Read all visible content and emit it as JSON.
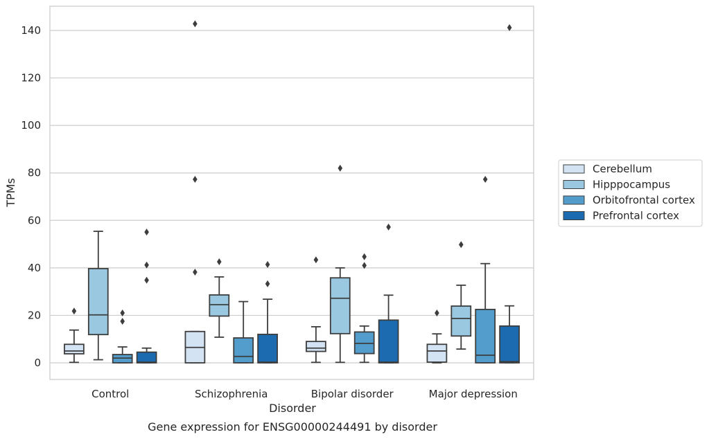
{
  "chart_data": {
    "type": "box",
    "title": "Gene expression for ENSG00000244491 by disorder",
    "xlabel": "Disorder",
    "ylabel": "TPMs",
    "ylim": [
      -7,
      150
    ],
    "yticks": [
      0,
      20,
      40,
      60,
      80,
      100,
      120,
      140
    ],
    "grid": true,
    "legend_position": "right",
    "categories": [
      "Control",
      "Schizophrenia",
      "Bipolar disorder",
      "Major depression"
    ],
    "series": [
      {
        "name": "Cerebellum",
        "color": "#d3e3f3",
        "boxes": [
          {
            "whislo": 0.2,
            "q1": 3.8,
            "med": 5.0,
            "q3": 7.8,
            "whishi": 13.8,
            "fliers": [
              21.8
            ]
          },
          {
            "whislo": 0.0,
            "q1": 0.0,
            "med": 6.5,
            "q3": 13.2,
            "whishi": 13.2,
            "fliers": [
              38.2,
              77.3,
              142.8
            ]
          },
          {
            "whislo": 0.2,
            "q1": 4.8,
            "med": 6.2,
            "q3": 9.0,
            "whishi": 15.2,
            "fliers": [
              43.4
            ]
          },
          {
            "whislo": 0.0,
            "q1": 0.3,
            "med": 5.0,
            "q3": 7.8,
            "whishi": 12.2,
            "fliers": [
              21.0
            ]
          }
        ]
      },
      {
        "name": "Hipppocampus",
        "color": "#9ac8e0",
        "boxes": [
          {
            "whislo": 1.3,
            "q1": 11.9,
            "med": 20.2,
            "q3": 39.7,
            "whishi": 55.4,
            "fliers": []
          },
          {
            "whislo": 10.8,
            "q1": 19.7,
            "med": 24.5,
            "q3": 28.6,
            "whishi": 36.2,
            "fliers": [
              42.6
            ]
          },
          {
            "whislo": 0.2,
            "q1": 12.3,
            "med": 27.2,
            "q3": 35.8,
            "whishi": 40.0,
            "fliers": [
              82.0
            ]
          },
          {
            "whislo": 5.8,
            "q1": 11.3,
            "med": 18.7,
            "q3": 23.9,
            "whishi": 32.7,
            "fliers": [
              49.8
            ]
          }
        ]
      },
      {
        "name": "Orbitofrontal cortex",
        "color": "#529dcc",
        "boxes": [
          {
            "whislo": 0.0,
            "q1": 0.0,
            "med": 2.0,
            "q3": 3.5,
            "whishi": 6.7,
            "fliers": [
              17.5,
              21.0
            ]
          },
          {
            "whislo": 0.0,
            "q1": 0.0,
            "med": 2.7,
            "q3": 10.5,
            "whishi": 25.8,
            "fliers": []
          },
          {
            "whislo": 0.2,
            "q1": 3.9,
            "med": 8.2,
            "q3": 13.0,
            "whishi": 15.5,
            "fliers": [
              41.0,
              44.7
            ]
          },
          {
            "whislo": 0.0,
            "q1": 0.0,
            "med": 3.2,
            "q3": 22.5,
            "whishi": 41.8,
            "fliers": [
              77.3
            ]
          }
        ]
      },
      {
        "name": "Prefrontal cortex",
        "color": "#1c6aaf",
        "boxes": [
          {
            "whislo": 0.0,
            "q1": 0.0,
            "med": 0.3,
            "q3": 4.5,
            "whishi": 6.2,
            "fliers": [
              34.8,
              41.2,
              55.1
            ]
          },
          {
            "whislo": 0.0,
            "q1": 0.0,
            "med": 0.3,
            "q3": 12.0,
            "whishi": 26.8,
            "fliers": [
              33.3,
              41.4
            ]
          },
          {
            "whislo": 0.0,
            "q1": 0.0,
            "med": 0.3,
            "q3": 18.0,
            "whishi": 28.5,
            "fliers": [
              57.2
            ]
          },
          {
            "whislo": 0.0,
            "q1": 0.0,
            "med": 0.5,
            "q3": 15.5,
            "whishi": 24.0,
            "fliers": [
              141.2
            ]
          }
        ]
      }
    ]
  }
}
